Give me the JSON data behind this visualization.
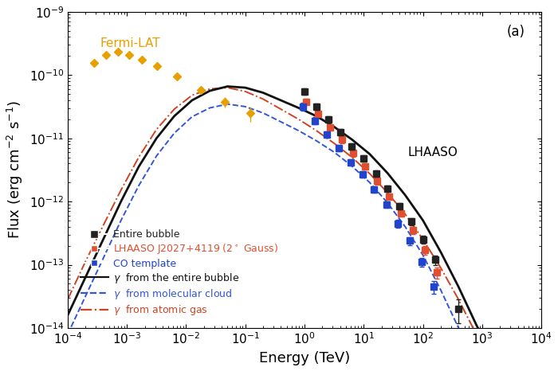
{
  "fermi_lat_x": [
    0.00028,
    0.00045,
    0.0007,
    0.0011,
    0.0018,
    0.0032,
    0.007,
    0.018,
    0.045,
    0.12
  ],
  "fermi_lat_y": [
    1.55e-10,
    2.05e-10,
    2.35e-10,
    2.1e-10,
    1.75e-10,
    1.38e-10,
    9.5e-11,
    5.8e-11,
    3.8e-11,
    2.5e-11
  ],
  "fermi_lat_yerr_lo": [
    1.2e-11,
    1.5e-11,
    1.8e-11,
    1.6e-11,
    1.4e-11,
    1.2e-11,
    9e-12,
    7e-12,
    7e-12,
    7e-12
  ],
  "fermi_lat_yerr_hi": [
    1.2e-11,
    1.5e-11,
    1.8e-11,
    1.6e-11,
    1.4e-11,
    1.2e-11,
    9e-12,
    7e-12,
    7e-12,
    7e-12
  ],
  "lhaaso_black_x": [
    1.0,
    1.6,
    2.5,
    4.0,
    6.3,
    10.0,
    16.0,
    25.0,
    40.0,
    63.0,
    100.0,
    160.0,
    400.0
  ],
  "lhaaso_black_y": [
    5.5e-11,
    3.2e-11,
    2e-11,
    1.25e-11,
    7.5e-12,
    4.8e-12,
    2.8e-12,
    1.6e-12,
    8.5e-13,
    4.8e-13,
    2.5e-13,
    1.2e-13,
    2e-14
  ],
  "lhaaso_black_yerr_lo": [
    6e-12,
    3.5e-12,
    2.2e-12,
    1.4e-12,
    8.5e-13,
    5.5e-13,
    3.2e-13,
    1.8e-13,
    1e-13,
    6e-14,
    3.5e-14,
    2e-14,
    8e-15
  ],
  "lhaaso_black_yerr_hi": [
    6e-12,
    3.5e-12,
    2.2e-12,
    1.4e-12,
    8.5e-13,
    5.5e-13,
    3.2e-13,
    1.8e-13,
    1e-13,
    6e-14,
    3.5e-14,
    2e-14,
    8e-15
  ],
  "lhaaso_red_x": [
    1.05,
    1.7,
    2.7,
    4.3,
    6.7,
    10.5,
    17.0,
    27.0,
    43.0,
    67.0,
    107.0,
    170.0
  ],
  "lhaaso_red_y": [
    3.8e-11,
    2.4e-11,
    1.5e-11,
    9.5e-12,
    5.8e-12,
    3.6e-12,
    2.1e-12,
    1.2e-12,
    6.5e-13,
    3.5e-13,
    1.7e-13,
    7.5e-14
  ],
  "lhaaso_red_yerr": [
    4e-12,
    2.5e-12,
    1.7e-12,
    1.1e-12,
    6.5e-13,
    4e-13,
    2.4e-13,
    1.4e-13,
    8e-14,
    4.5e-14,
    2.5e-14,
    1.5e-14
  ],
  "lhaaso_blue_x": [
    0.95,
    1.5,
    2.4,
    3.8,
    6.0,
    9.5,
    15.0,
    24.0,
    38.0,
    60.0,
    95.0,
    150.0
  ],
  "lhaaso_blue_y": [
    3.2e-11,
    1.9e-11,
    1.15e-11,
    7e-12,
    4.2e-12,
    2.7e-12,
    1.55e-12,
    9e-13,
    4.5e-13,
    2.4e-13,
    1.1e-13,
    4.5e-14
  ],
  "lhaaso_blue_yerr": [
    4.5e-12,
    2.5e-12,
    1.4e-12,
    8.5e-13,
    5e-13,
    3.2e-13,
    1.9e-13,
    1.1e-13,
    6e-14,
    3.5e-14,
    1.8e-14,
    1e-14
  ],
  "model_black_x_log": [
    -4.0,
    -3.7,
    -3.4,
    -3.1,
    -2.8,
    -2.5,
    -2.2,
    -1.9,
    -1.6,
    -1.3,
    -1.0,
    -0.7,
    -0.4,
    -0.1,
    0.2,
    0.5,
    0.8,
    1.1,
    1.4,
    1.7,
    2.0,
    2.3,
    2.6,
    2.9,
    3.2,
    3.5
  ],
  "model_black_y_log": [
    -13.8,
    -13.2,
    -12.6,
    -12.0,
    -11.45,
    -11.0,
    -10.65,
    -10.4,
    -10.25,
    -10.18,
    -10.2,
    -10.28,
    -10.4,
    -10.52,
    -10.65,
    -10.82,
    -11.02,
    -11.25,
    -11.55,
    -11.9,
    -12.3,
    -12.8,
    -13.35,
    -13.95,
    -14.5,
    -15.2
  ],
  "model_blue_x_log": [
    -4.0,
    -3.7,
    -3.4,
    -3.1,
    -2.8,
    -2.5,
    -2.2,
    -1.9,
    -1.6,
    -1.3,
    -1.0,
    -0.7,
    -0.4,
    -0.1,
    0.2,
    0.5,
    0.8,
    1.1,
    1.4,
    1.7,
    2.0,
    2.3,
    2.6,
    2.9,
    3.2
  ],
  "model_blue_y_log": [
    -14.1,
    -13.5,
    -12.9,
    -12.3,
    -11.75,
    -11.28,
    -10.92,
    -10.66,
    -10.52,
    -10.46,
    -10.5,
    -10.6,
    -10.74,
    -10.88,
    -11.04,
    -11.22,
    -11.44,
    -11.7,
    -12.02,
    -12.4,
    -12.85,
    -13.4,
    -14.0,
    -14.65,
    -15.35
  ],
  "model_red_x_log": [
    -4.0,
    -3.7,
    -3.4,
    -3.1,
    -2.8,
    -2.5,
    -2.2,
    -1.9,
    -1.6,
    -1.3,
    -1.0,
    -0.7,
    -0.4,
    -0.1,
    0.2,
    0.5,
    0.8,
    1.1,
    1.4,
    1.7,
    2.0,
    2.3,
    2.6,
    2.9,
    3.2
  ],
  "model_red_y_log": [
    -13.55,
    -12.95,
    -12.38,
    -11.82,
    -11.3,
    -10.86,
    -10.54,
    -10.32,
    -10.22,
    -10.2,
    -10.26,
    -10.38,
    -10.54,
    -10.7,
    -10.88,
    -11.08,
    -11.3,
    -11.56,
    -11.86,
    -12.2,
    -12.6,
    -13.05,
    -13.55,
    -14.1,
    -14.72
  ],
  "fermi_color": "#E8A000",
  "black_color": "#222222",
  "red_color": "#E05030",
  "blue_color": "#2244CC",
  "model_black_color": "#111111",
  "model_blue_color": "#3355DD",
  "model_red_color": "#CC4422",
  "xlabel": "Energy (TeV)",
  "ylabel": "Flux (erg cm$^{-2}$ s$^{-1}$)",
  "xlim_log": [
    -4,
    4
  ],
  "ylim_log": [
    -14,
    -9
  ],
  "label_fontsize": 13,
  "tick_fontsize": 11
}
